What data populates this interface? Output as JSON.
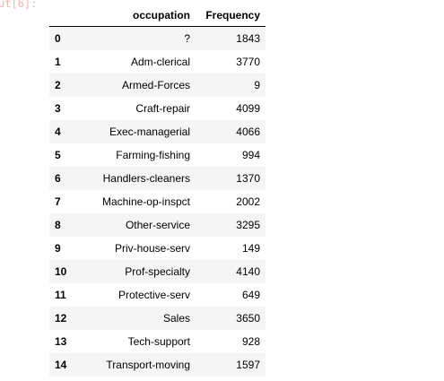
{
  "prompt_fragment": "ut[6]:",
  "table": {
    "columns": {
      "index": "",
      "occupation": "occupation",
      "frequency": "Frequency"
    },
    "rows": [
      {
        "index": "0",
        "occupation": "?",
        "frequency": "1843"
      },
      {
        "index": "1",
        "occupation": "Adm-clerical",
        "frequency": "3770"
      },
      {
        "index": "2",
        "occupation": "Armed-Forces",
        "frequency": "9"
      },
      {
        "index": "3",
        "occupation": "Craft-repair",
        "frequency": "4099"
      },
      {
        "index": "4",
        "occupation": "Exec-managerial",
        "frequency": "4066"
      },
      {
        "index": "5",
        "occupation": "Farming-fishing",
        "frequency": "994"
      },
      {
        "index": "6",
        "occupation": "Handlers-cleaners",
        "frequency": "1370"
      },
      {
        "index": "7",
        "occupation": "Machine-op-inspct",
        "frequency": "2002"
      },
      {
        "index": "8",
        "occupation": "Other-service",
        "frequency": "3295"
      },
      {
        "index": "9",
        "occupation": "Priv-house-serv",
        "frequency": "149"
      },
      {
        "index": "10",
        "occupation": "Prof-specialty",
        "frequency": "4140"
      },
      {
        "index": "11",
        "occupation": "Protective-serv",
        "frequency": "649"
      },
      {
        "index": "12",
        "occupation": "Sales",
        "frequency": "3650"
      },
      {
        "index": "13",
        "occupation": "Tech-support",
        "frequency": "928"
      },
      {
        "index": "14",
        "occupation": "Transport-moving",
        "frequency": "1597"
      }
    ]
  }
}
